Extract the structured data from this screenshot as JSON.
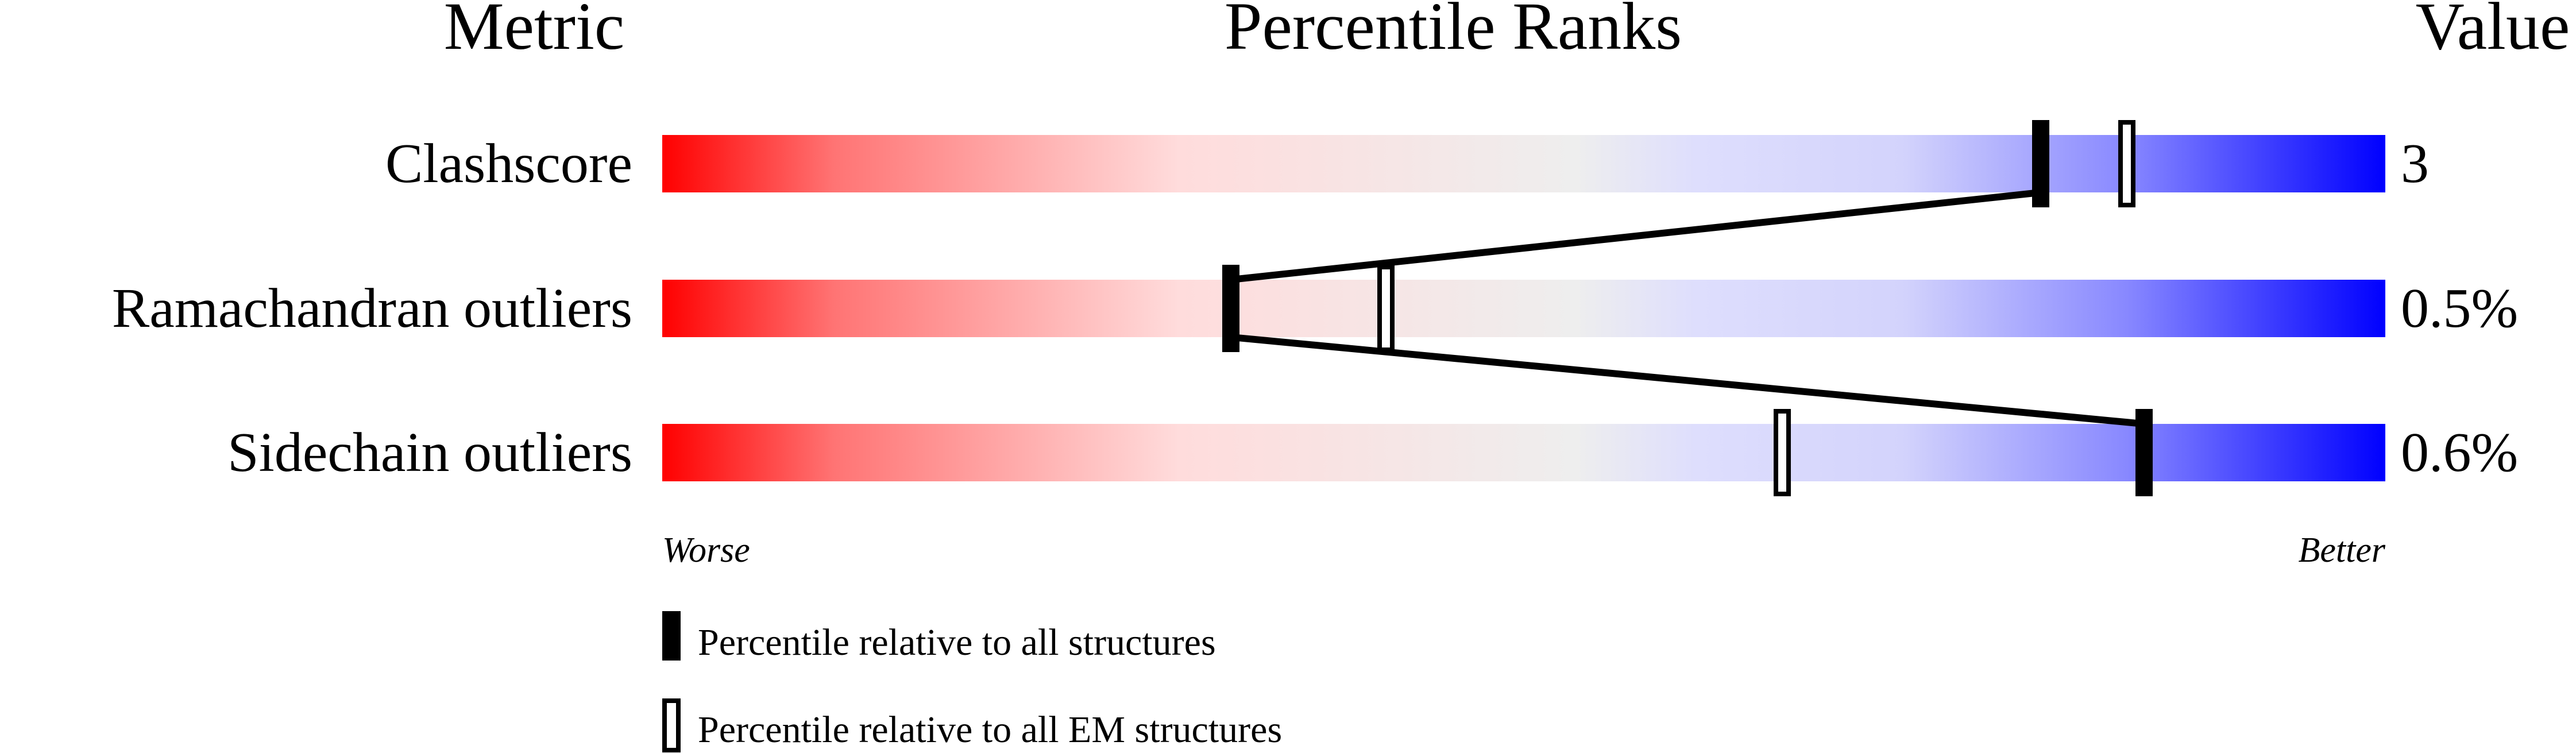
{
  "chart_data": {
    "type": "percentile-bar",
    "headers": {
      "metric": "Metric",
      "ranks": "Percentile Ranks",
      "value": "Value"
    },
    "axis": {
      "min_label": "Worse",
      "max_label": "Better",
      "range": [
        0,
        100
      ]
    },
    "gradient_colors": [
      "#ff0000",
      "#ffdddd",
      "#eeeeee",
      "#ddddff",
      "#0000ff"
    ],
    "metrics": [
      {
        "name": "Clashscore",
        "value": "3",
        "percentile_all": 80,
        "percentile_em": 85
      },
      {
        "name": "Ramachandran outliers",
        "value": "0.5%",
        "percentile_all": 33,
        "percentile_em": 42
      },
      {
        "name": "Sidechain outliers",
        "value": "0.6%",
        "percentile_all": 86,
        "percentile_em": 65
      }
    ],
    "legend": [
      {
        "marker": "filled",
        "label": "Percentile relative to all structures"
      },
      {
        "marker": "open",
        "label": "Percentile relative to all EM structures"
      }
    ]
  }
}
